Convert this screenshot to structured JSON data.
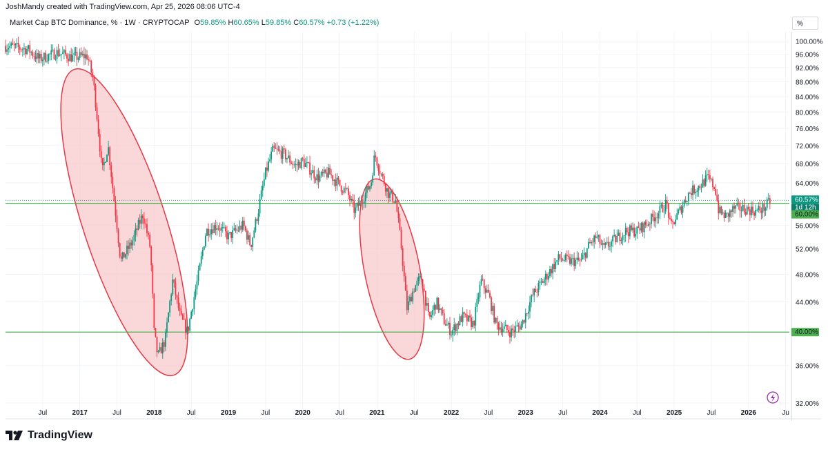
{
  "header": {
    "credit": "JoshMandy created with TradingView.com, Apr 25, 2026 08:06 UTC-4"
  },
  "legend": {
    "symbol": "Market Cap BTC Dominance, % · 1W · CRYPTOCAP",
    "open_label": "O",
    "open": "59.85%",
    "high_label": "H",
    "high": "60.65%",
    "low_label": "L",
    "low": "59.85%",
    "close_label": "C",
    "close": "60.57%",
    "change": "+0.73 (+1.22%)"
  },
  "toolbar": {
    "scale_button": "%"
  },
  "price_badges": {
    "last": "60.57%",
    "countdown": "1d 12h",
    "level": "60.00%",
    "support": "40.00%"
  },
  "footer": {
    "brand": "TradingView"
  },
  "colors": {
    "up": "#089981",
    "down": "#f23645",
    "line": "#4caf50",
    "ellipse_fill": "#f8c9cc",
    "ellipse_stroke": "#e53945"
  },
  "chart_data": {
    "type": "candlestick",
    "title": "Market Cap BTC Dominance, % · 1W · CRYPTOCAP",
    "y_scale": "log",
    "ylim": [
      30.5,
      103
    ],
    "xlim": [
      2016.0,
      2026.55
    ],
    "y_ticks": [
      "100.00%",
      "96.00%",
      "92.00%",
      "88.00%",
      "84.00%",
      "80.00%",
      "76.00%",
      "72.00%",
      "68.00%",
      "64.00%",
      "56.00%",
      "52.00%",
      "48.00%",
      "44.00%",
      "36.00%",
      "32.00%"
    ],
    "y_tick_values": [
      100,
      96,
      92,
      88,
      84,
      80,
      76,
      72,
      68,
      64,
      56,
      52,
      48,
      44,
      36,
      32
    ],
    "x_ticks": [
      {
        "t": 2016.5,
        "label": "Jul",
        "bold": false
      },
      {
        "t": 2017.0,
        "label": "2017",
        "bold": true
      },
      {
        "t": 2017.5,
        "label": "Jul",
        "bold": false
      },
      {
        "t": 2018.0,
        "label": "2018",
        "bold": true
      },
      {
        "t": 2018.5,
        "label": "Jul",
        "bold": false
      },
      {
        "t": 2019.0,
        "label": "2019",
        "bold": true
      },
      {
        "t": 2019.5,
        "label": "Jul",
        "bold": false
      },
      {
        "t": 2020.0,
        "label": "2020",
        "bold": true
      },
      {
        "t": 2020.5,
        "label": "Jul",
        "bold": false
      },
      {
        "t": 2021.0,
        "label": "2021",
        "bold": true
      },
      {
        "t": 2021.5,
        "label": "Jul",
        "bold": false
      },
      {
        "t": 2022.0,
        "label": "2022",
        "bold": true
      },
      {
        "t": 2022.5,
        "label": "Jul",
        "bold": false
      },
      {
        "t": 2023.0,
        "label": "2023",
        "bold": true
      },
      {
        "t": 2023.5,
        "label": "Jul",
        "bold": false
      },
      {
        "t": 2024.0,
        "label": "2024",
        "bold": true
      },
      {
        "t": 2024.5,
        "label": "Jul",
        "bold": false
      },
      {
        "t": 2025.0,
        "label": "2025",
        "bold": true
      },
      {
        "t": 2025.5,
        "label": "Jul",
        "bold": false
      },
      {
        "t": 2026.0,
        "label": "2026",
        "bold": true
      },
      {
        "t": 2026.5,
        "label": "Ju",
        "bold": false
      }
    ],
    "series_points": [
      [
        2016.0,
        98.5
      ],
      [
        2016.3,
        97.5
      ],
      [
        2016.45,
        94.5
      ],
      [
        2016.7,
        96.5
      ],
      [
        2016.9,
        95.0
      ],
      [
        2017.1,
        95.5
      ],
      [
        2017.18,
        88.5
      ],
      [
        2017.3,
        66.0
      ],
      [
        2017.38,
        72.0
      ],
      [
        2017.45,
        62.0
      ],
      [
        2017.55,
        50.0
      ],
      [
        2017.7,
        53.0
      ],
      [
        2017.85,
        58.0
      ],
      [
        2017.95,
        52.0
      ],
      [
        2018.0,
        40.0
      ],
      [
        2018.05,
        37.0
      ],
      [
        2018.15,
        39.0
      ],
      [
        2018.25,
        47.0
      ],
      [
        2018.35,
        42.0
      ],
      [
        2018.45,
        40.0
      ],
      [
        2018.6,
        48.0
      ],
      [
        2018.7,
        55.0
      ],
      [
        2018.85,
        56.0
      ],
      [
        2019.0,
        54.0
      ],
      [
        2019.2,
        56.0
      ],
      [
        2019.3,
        52.5
      ],
      [
        2019.4,
        58.5
      ],
      [
        2019.5,
        66.0
      ],
      [
        2019.6,
        71.0
      ],
      [
        2019.75,
        70.0
      ],
      [
        2019.9,
        67.5
      ],
      [
        2020.0,
        68.5
      ],
      [
        2020.2,
        65.0
      ],
      [
        2020.35,
        66.0
      ],
      [
        2020.5,
        63.5
      ],
      [
        2020.6,
        62.0
      ],
      [
        2020.7,
        58.5
      ],
      [
        2020.85,
        62.0
      ],
      [
        2020.92,
        64.0
      ],
      [
        2020.97,
        70.0
      ],
      [
        2021.05,
        66.0
      ],
      [
        2021.15,
        62.0
      ],
      [
        2021.25,
        60.5
      ],
      [
        2021.33,
        52.0
      ],
      [
        2021.4,
        43.0
      ],
      [
        2021.5,
        46.0
      ],
      [
        2021.6,
        47.5
      ],
      [
        2021.7,
        41.5
      ],
      [
        2021.8,
        44.0
      ],
      [
        2021.9,
        41.5
      ],
      [
        2022.0,
        40.0
      ],
      [
        2022.15,
        42.0
      ],
      [
        2022.3,
        41.0
      ],
      [
        2022.4,
        47.0
      ],
      [
        2022.5,
        45.0
      ],
      [
        2022.6,
        41.0
      ],
      [
        2022.8,
        40.0
      ],
      [
        2022.95,
        41.0
      ],
      [
        2023.1,
        45.0
      ],
      [
        2023.2,
        46.5
      ],
      [
        2023.3,
        48.0
      ],
      [
        2023.45,
        50.5
      ],
      [
        2023.6,
        50.0
      ],
      [
        2023.75,
        50.0
      ],
      [
        2023.85,
        52.5
      ],
      [
        2023.95,
        54.0
      ],
      [
        2024.05,
        52.0
      ],
      [
        2024.2,
        53.5
      ],
      [
        2024.35,
        55.0
      ],
      [
        2024.5,
        55.0
      ],
      [
        2024.65,
        56.5
      ],
      [
        2024.8,
        58.5
      ],
      [
        2024.9,
        60.0
      ],
      [
        2024.95,
        55.5
      ],
      [
        2025.05,
        58.0
      ],
      [
        2025.2,
        62.0
      ],
      [
        2025.35,
        63.5
      ],
      [
        2025.45,
        65.0
      ],
      [
        2025.55,
        63.0
      ],
      [
        2025.6,
        58.5
      ],
      [
        2025.7,
        57.5
      ],
      [
        2025.8,
        59.0
      ],
      [
        2025.95,
        59.0
      ],
      [
        2026.1,
        58.5
      ],
      [
        2026.22,
        59.2
      ],
      [
        2026.3,
        60.57
      ]
    ],
    "horizontal_lines": [
      60.0,
      40.0
    ],
    "last_value": 60.57
  }
}
